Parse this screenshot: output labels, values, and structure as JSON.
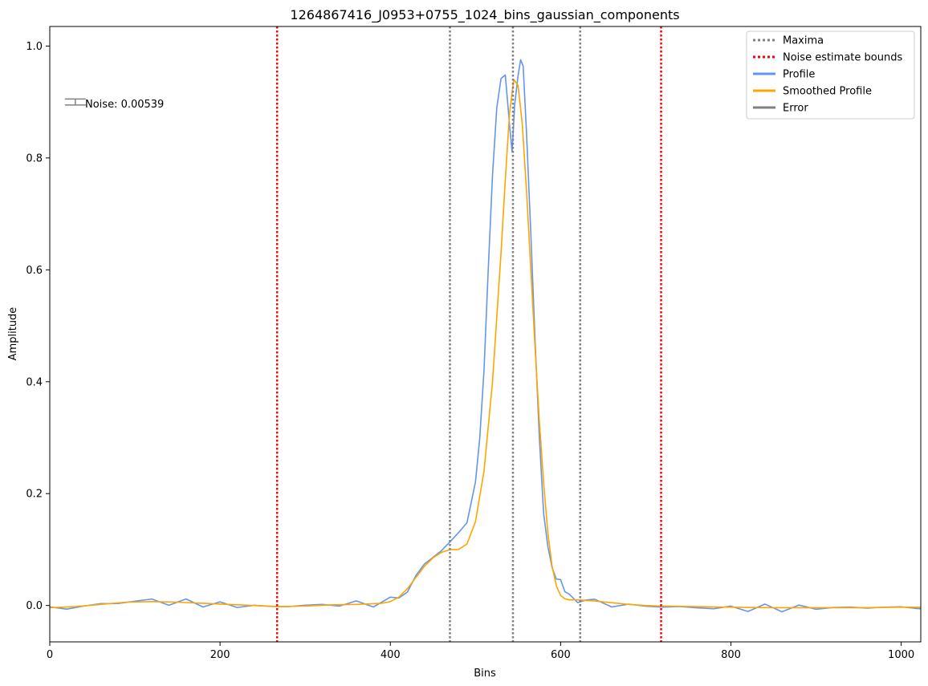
{
  "chart_data": {
    "type": "line",
    "title": "1264867416_J0953+0755_1024_bins_gaussian_components",
    "xlabel": "Bins",
    "ylabel": "Amplitude",
    "xlim": [
      0,
      1023
    ],
    "ylim": [
      -0.065,
      1.035
    ],
    "x_ticks": [
      0,
      200,
      400,
      600,
      800,
      1000
    ],
    "y_ticks": [
      0.0,
      0.2,
      0.4,
      0.6,
      0.8,
      1.0
    ],
    "grid": false,
    "legend_position": "top-right",
    "legend": [
      "Maxima",
      "Noise estimate bounds",
      "Profile",
      "Smoothed Profile",
      "Error"
    ],
    "maxima_lines": [
      470,
      544,
      623
    ],
    "noise_bounds": [
      267,
      718
    ],
    "noise_annotation": "Noise: 0.00539",
    "noise_value": 0.00539,
    "error_bar_position": [
      30,
      0.9
    ],
    "colors": {
      "maxima": "#808080",
      "noise_bounds": "#ff0000",
      "profile": "#6495ed",
      "smoothed": "#ffa500",
      "error": "#808080"
    },
    "series": [
      {
        "name": "Profile",
        "x": [
          0,
          20,
          40,
          60,
          80,
          100,
          120,
          140,
          160,
          180,
          200,
          220,
          240,
          260,
          280,
          300,
          320,
          340,
          360,
          380,
          400,
          410,
          420,
          430,
          440,
          450,
          460,
          470,
          480,
          490,
          500,
          505,
          510,
          515,
          520,
          525,
          530,
          535,
          540,
          543,
          546,
          550,
          553,
          556,
          560,
          565,
          570,
          575,
          580,
          585,
          590,
          595,
          600,
          605,
          610,
          620,
          630,
          640,
          660,
          680,
          700,
          720,
          740,
          760,
          780,
          800,
          820,
          840,
          860,
          880,
          900,
          920,
          940,
          960,
          980,
          1000,
          1023
        ],
        "y": [
          -0.005,
          -0.006,
          0.0,
          0.002,
          0.004,
          0.009,
          0.008,
          0.006,
          0.005,
          0.004,
          0.001,
          0.0,
          -0.001,
          -0.002,
          -0.001,
          0.0,
          0.001,
          0.002,
          0.003,
          0.004,
          0.008,
          0.015,
          0.03,
          0.05,
          0.07,
          0.09,
          0.1,
          0.11,
          0.13,
          0.15,
          0.22,
          0.3,
          0.42,
          0.6,
          0.77,
          0.89,
          0.94,
          0.95,
          0.86,
          0.81,
          0.9,
          0.95,
          0.98,
          0.96,
          0.84,
          0.67,
          0.47,
          0.3,
          0.17,
          0.1,
          0.07,
          0.05,
          0.04,
          0.03,
          0.02,
          0.012,
          0.008,
          0.005,
          0.002,
          0.0,
          -0.001,
          -0.002,
          -0.003,
          -0.004,
          -0.004,
          -0.005,
          -0.005,
          -0.004,
          -0.005,
          -0.004,
          -0.004,
          -0.004,
          -0.004,
          -0.003,
          -0.004,
          -0.003,
          -0.003
        ]
      },
      {
        "name": "Smoothed Profile",
        "x": [
          0,
          30,
          60,
          90,
          120,
          150,
          180,
          210,
          240,
          270,
          300,
          330,
          360,
          390,
          400,
          410,
          420,
          430,
          440,
          450,
          460,
          470,
          475,
          480,
          490,
          500,
          510,
          520,
          530,
          535,
          540,
          545,
          550,
          555,
          560,
          565,
          570,
          575,
          580,
          585,
          590,
          595,
          600,
          605,
          610,
          620,
          640,
          660,
          680,
          700,
          720,
          760,
          800,
          850,
          900,
          950,
          1000,
          1023
        ],
        "y": [
          -0.004,
          -0.002,
          0.002,
          0.006,
          0.007,
          0.006,
          0.004,
          0.002,
          0.0,
          -0.002,
          -0.001,
          0.001,
          0.002,
          0.004,
          0.007,
          0.015,
          0.03,
          0.05,
          0.07,
          0.085,
          0.095,
          0.1,
          0.1,
          0.1,
          0.11,
          0.15,
          0.24,
          0.4,
          0.63,
          0.76,
          0.88,
          0.94,
          0.93,
          0.86,
          0.74,
          0.6,
          0.46,
          0.33,
          0.22,
          0.13,
          0.07,
          0.035,
          0.018,
          0.012,
          0.01,
          0.01,
          0.008,
          0.005,
          0.002,
          0.0,
          -0.001,
          -0.002,
          -0.003,
          -0.004,
          -0.004,
          -0.004,
          -0.003,
          -0.003
        ]
      }
    ]
  }
}
